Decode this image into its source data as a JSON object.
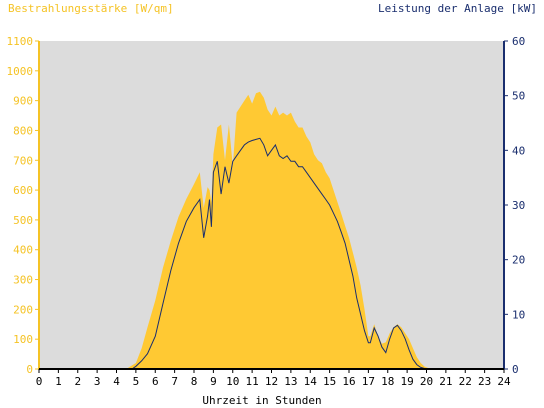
{
  "chart_data": {
    "type": "area",
    "left_axis_title": "Bestrahlungsstärke [W/qm]",
    "right_axis_title": "Leistung der Anlage [kW]",
    "xlabel": "Uhrzeit in Stunden",
    "xlim": [
      0,
      24
    ],
    "ylim_left": [
      0,
      1100
    ],
    "ylim_right": [
      0,
      60
    ],
    "x_ticks": [
      "0",
      "1",
      "2",
      "3",
      "4",
      "5",
      "6",
      "7",
      "8",
      "9",
      "10",
      "11",
      "12",
      "13",
      "14",
      "15",
      "16",
      "17",
      "18",
      "19",
      "20",
      "21",
      "22",
      "23",
      "24"
    ],
    "y_left_ticks": [
      "0",
      "100",
      "200",
      "300",
      "400",
      "500",
      "600",
      "700",
      "800",
      "900",
      "1000",
      "1100"
    ],
    "y_right_ticks": [
      "0",
      "10",
      "20",
      "30",
      "40",
      "50",
      "60"
    ],
    "grid": false,
    "colors": {
      "irradiance_fill": "#ffc933",
      "power_line": "#1a2e6e",
      "plot_bg": "#dcdcdc",
      "left_axis": "#f5c325",
      "right_axis": "#1a2e6e"
    },
    "series": [
      {
        "axis": "left",
        "style": "filled-area",
        "x": [
          0,
          4.5,
          5.0,
          5.3,
          5.6,
          6.0,
          6.4,
          6.8,
          7.2,
          7.6,
          8.0,
          8.3,
          8.5,
          8.7,
          8.8,
          8.9,
          9.0,
          9.2,
          9.4,
          9.6,
          9.8,
          10.0,
          10.2,
          10.4,
          10.6,
          10.8,
          11.0,
          11.2,
          11.4,
          11.6,
          11.8,
          12.0,
          12.2,
          12.4,
          12.6,
          12.8,
          13.0,
          13.2,
          13.4,
          13.6,
          13.8,
          14.0,
          14.2,
          14.4,
          14.6,
          14.8,
          15.0,
          15.2,
          15.4,
          15.6,
          15.8,
          16.0,
          16.2,
          16.4,
          16.6,
          16.8,
          17.0,
          17.1,
          17.3,
          17.5,
          17.7,
          17.9,
          18.1,
          18.3,
          18.5,
          18.7,
          18.9,
          19.1,
          19.3,
          19.5,
          19.7,
          19.9,
          20.1,
          20.3,
          20.5,
          21,
          22,
          23,
          24
        ],
        "values": [
          0,
          0,
          20,
          70,
          140,
          230,
          340,
          430,
          510,
          570,
          620,
          660,
          540,
          610,
          600,
          560,
          720,
          810,
          820,
          700,
          820,
          680,
          860,
          880,
          900,
          920,
          890,
          925,
          930,
          910,
          870,
          850,
          880,
          850,
          860,
          850,
          860,
          830,
          810,
          810,
          780,
          760,
          720,
          700,
          690,
          660,
          640,
          600,
          560,
          520,
          480,
          440,
          390,
          340,
          280,
          200,
          110,
          110,
          150,
          110,
          85,
          90,
          120,
          140,
          150,
          140,
          120,
          100,
          70,
          40,
          20,
          8,
          3,
          0,
          0,
          0,
          0,
          0,
          0
        ]
      },
      {
        "axis": "right",
        "style": "line",
        "x": [
          0,
          4.8,
          5.0,
          5.3,
          5.6,
          6.0,
          6.4,
          6.8,
          7.2,
          7.6,
          8.0,
          8.3,
          8.5,
          8.7,
          8.8,
          8.9,
          9.0,
          9.2,
          9.4,
          9.6,
          9.8,
          10.0,
          10.2,
          10.4,
          10.6,
          10.8,
          11.0,
          11.2,
          11.4,
          11.6,
          11.8,
          12.0,
          12.2,
          12.4,
          12.6,
          12.8,
          13.0,
          13.2,
          13.4,
          13.6,
          13.8,
          14.0,
          14.2,
          14.4,
          14.6,
          14.8,
          15.0,
          15.2,
          15.4,
          15.6,
          15.8,
          16.0,
          16.2,
          16.4,
          16.6,
          16.8,
          17.0,
          17.1,
          17.3,
          17.5,
          17.7,
          17.9,
          18.1,
          18.3,
          18.5,
          18.7,
          18.9,
          19.1,
          19.3,
          19.5,
          19.7,
          19.9,
          20.1,
          20.3,
          20.5,
          21,
          22,
          23,
          24
        ],
        "values": [
          0,
          0,
          0.5,
          1.5,
          2.8,
          6,
          12,
          18,
          23,
          27,
          29.5,
          31,
          24,
          28,
          31,
          26,
          36,
          38,
          32,
          37,
          34,
          38,
          39,
          40,
          41,
          41.5,
          41.8,
          42,
          42.2,
          41,
          39,
          40,
          41,
          39,
          38.5,
          39,
          38,
          38,
          37,
          37,
          36,
          35,
          34,
          33,
          32,
          31,
          30,
          28.5,
          27,
          25,
          23,
          20,
          17,
          13,
          10,
          7,
          4.8,
          4.8,
          7.5,
          6,
          4,
          3,
          5.5,
          7.5,
          8,
          7,
          5.5,
          3.5,
          1.8,
          0.8,
          0.3,
          0.1,
          0,
          0,
          0,
          0,
          0,
          0,
          0
        ]
      }
    ]
  }
}
